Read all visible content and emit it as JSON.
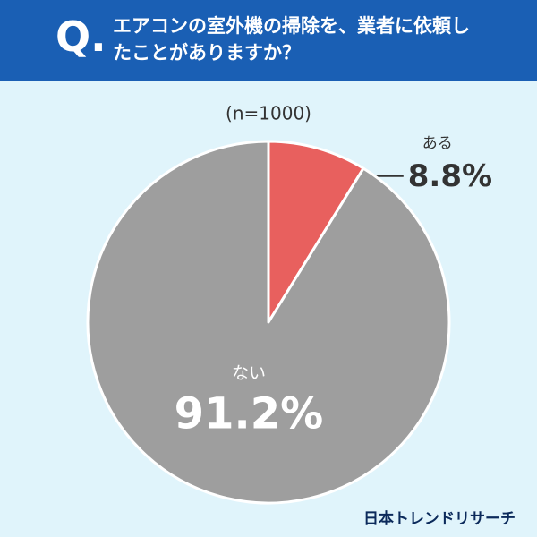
{
  "chart_data": {
    "type": "pie",
    "title_prefix": "Q.",
    "title": "エアコンの室外機の掃除を、業者に依頼したことがありますか？",
    "subtitle": "(n=1000)",
    "categories": [
      "ある",
      "ない"
    ],
    "values": [
      8.8,
      91.2
    ],
    "value_labels": [
      "8.8%",
      "91.2%"
    ],
    "colors": [
      "#e8605e",
      "#9e9e9e"
    ],
    "source": "日本トレンドリサーチ"
  }
}
